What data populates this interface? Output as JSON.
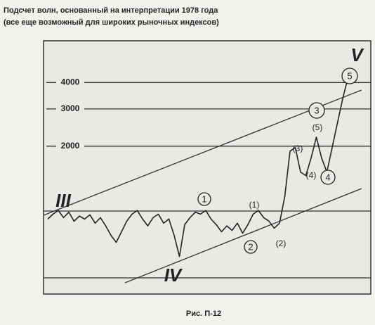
{
  "title": "Подсчет волн, основанный на интерпретации 1978 года",
  "subtitle": "(все еще возможный для широких рыночных индексов)",
  "caption": "Рис. П-12",
  "chart_data": {
    "type": "line",
    "log_scale": true,
    "ylim": [
      400,
      6300
    ],
    "yticks": [
      4000,
      3000,
      2000
    ],
    "grid": true,
    "categories": [
      null,
      null,
      null,
      null,
      null,
      null,
      null,
      null,
      null,
      null,
      null,
      null,
      null,
      null,
      null,
      null,
      null,
      null,
      null,
      null,
      null,
      null,
      null,
      null,
      null,
      null,
      null,
      null,
      null,
      null,
      null,
      null,
      null,
      null,
      null,
      null,
      null,
      null,
      null,
      null,
      null,
      null,
      null,
      null,
      null,
      null,
      null,
      null,
      null,
      null,
      null,
      null,
      null,
      null,
      null,
      null,
      null,
      null
    ],
    "series": [
      {
        "color": "#222222",
        "values": [
          905,
          955,
          993,
          919,
          975,
          884,
          935,
          905,
          948,
          865,
          919,
          840,
          758,
          702,
          788,
          884,
          955,
          993,
          905,
          840,
          919,
          955,
          865,
          905,
          758,
          602,
          851,
          919,
          975,
          955,
          993,
          905,
          851,
          788,
          840,
          800,
          865,
          776,
          851,
          955,
          993,
          919,
          884,
          819,
          865,
          null,
          null,
          null,
          null,
          null,
          null,
          null,
          null,
          null,
          null,
          null,
          null,
          null
        ]
      },
      {
        "color": "#222222",
        "values": [
          null,
          null,
          null,
          null,
          null,
          null,
          null,
          null,
          null,
          null,
          null,
          null,
          null,
          null,
          null,
          null,
          null,
          null,
          null,
          null,
          null,
          null,
          null,
          null,
          null,
          null,
          null,
          null,
          null,
          null,
          null,
          null,
          null,
          null,
          null,
          null,
          null,
          null,
          null,
          null,
          null,
          null,
          null,
          null,
          865,
          1156,
          1896,
          1970,
          1509,
          1452,
          1758,
          2207,
          1758,
          1509,
          1970,
          2572,
          3356,
          4217
        ]
      }
    ],
    "wave_labels": [
      "III",
      "IV",
      "V"
    ],
    "circled_labels": [
      "1",
      "2",
      "3",
      "4",
      "5"
    ],
    "minor_labels": [
      "(1)",
      "(2)",
      "(3)",
      "(4)",
      "(5)"
    ]
  }
}
